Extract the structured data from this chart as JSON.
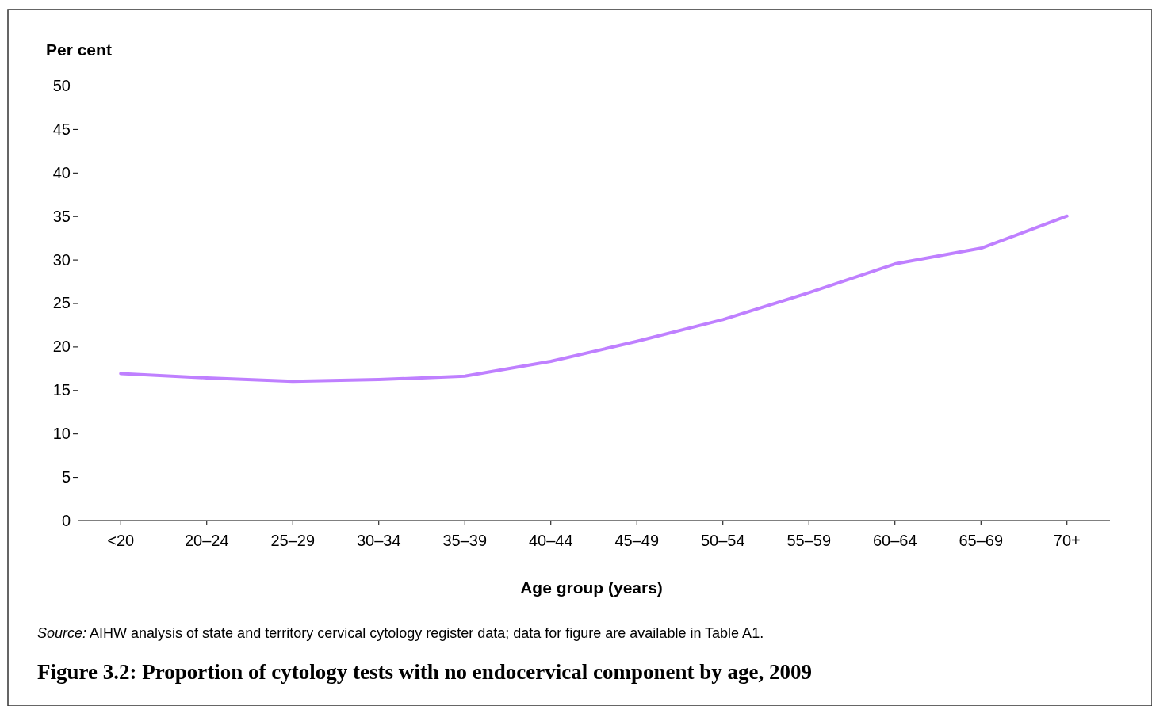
{
  "chart_data": {
    "type": "line",
    "title": "Figure 3.2: Proportion of cytology tests with no endocervical component by age, 2009",
    "xlabel": "Age group (years)",
    "ylabel": "Per cent",
    "categories": [
      "<20",
      "20–24",
      "25–29",
      "30–34",
      "35–39",
      "40–44",
      "45–49",
      "50–54",
      "55–59",
      "60–64",
      "65–69",
      "70+"
    ],
    "series": [
      {
        "color": "#bf80ff",
        "values": [
          16.9,
          16.4,
          16.0,
          16.2,
          16.6,
          18.3,
          20.6,
          23.1,
          26.2,
          29.5,
          31.3,
          35.0
        ]
      }
    ],
    "ylim": [
      0,
      50
    ],
    "yticks": [
      0,
      5,
      10,
      15,
      20,
      25,
      30,
      35,
      40,
      45,
      50
    ],
    "marker": "none",
    "line_style": "solid",
    "annotations": [
      "Source: AIHW analysis of state and territory cervical cytology register data; data for figure are available in Table A1."
    ]
  }
}
